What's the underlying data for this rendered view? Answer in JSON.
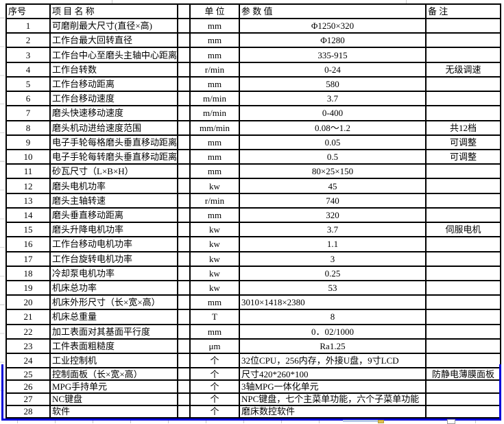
{
  "colors": {
    "table_border": "#000000",
    "selection_border_blue": "#0101d8",
    "margin_grid_gray": "#d6d6d6"
  },
  "table": {
    "headers": {
      "no": "序号",
      "name": "项 目 名 称",
      "unit": "单 位",
      "value": "参 数 值",
      "note": "备 注"
    },
    "rows": [
      {
        "no": "1",
        "name": "可磨削最大尺寸(直径×高)",
        "unit": "mm",
        "value": "Φ1250×320",
        "value_align": "center",
        "note": "",
        "in_selection": false
      },
      {
        "no": "2",
        "name": "工作台最大回转直径",
        "unit": "mm",
        "value": "Φ1280",
        "value_align": "center",
        "note": "",
        "in_selection": false
      },
      {
        "no": "3",
        "name": "工作台中心至磨头主轴中心距离",
        "unit": "mm",
        "value": "335-915",
        "value_align": "center",
        "note": "",
        "in_selection": false
      },
      {
        "no": "4",
        "name": "工作台转数",
        "unit": "r/min",
        "value": "0-24",
        "value_align": "center",
        "note": "无级调速",
        "in_selection": false
      },
      {
        "no": "5",
        "name": "工作台移动距离",
        "unit": "mm",
        "value": "580",
        "value_align": "center",
        "note": "",
        "in_selection": false
      },
      {
        "no": "6",
        "name": "工作台移动速度",
        "unit": "m/min",
        "value": "3.7",
        "value_align": "center",
        "note": "",
        "in_selection": false
      },
      {
        "no": "7",
        "name": "磨头快速移动速度",
        "unit": "m/min",
        "value": "0-400",
        "value_align": "center",
        "note": "",
        "in_selection": false
      },
      {
        "no": "8",
        "name": "磨头机动进给速度范围",
        "unit": "mm/min",
        "value": "0.08～1.2",
        "value_align": "center",
        "note": "共12档",
        "in_selection": false
      },
      {
        "no": "9",
        "name": "电子手轮每格磨头垂直移动距离",
        "unit": "mm",
        "value": "0.05",
        "value_align": "center",
        "note": "可调整",
        "in_selection": false
      },
      {
        "no": "10",
        "name": "电子手轮每转磨头垂直移动距离",
        "unit": "mm",
        "value": "0.5",
        "value_align": "center",
        "note": "可调整",
        "in_selection": false
      },
      {
        "no": "11",
        "name": "砂瓦尺寸（L×B×H）",
        "unit": "mm",
        "value": "80×25×150",
        "value_align": "center",
        "note": "",
        "in_selection": false
      },
      {
        "no": "12",
        "name": "磨头电机功率",
        "unit": "kw",
        "value": "45",
        "value_align": "center",
        "note": "",
        "in_selection": false
      },
      {
        "no": "13",
        "name": "磨头主轴转速",
        "unit": "r/min",
        "value": "740",
        "value_align": "center",
        "note": "",
        "in_selection": false
      },
      {
        "no": "14",
        "name": "磨头垂直移动距离",
        "unit": "mm",
        "value": "320",
        "value_align": "center",
        "note": "",
        "in_selection": false
      },
      {
        "no": "15",
        "name": "磨头升降电机功率",
        "unit": "kw",
        "value": "3.7",
        "value_align": "center",
        "note": "伺服电机",
        "in_selection": false
      },
      {
        "no": "16",
        "name": "工作台移动电机功率",
        "unit": "kw",
        "value": "1.1",
        "value_align": "center",
        "note": "",
        "in_selection": false
      },
      {
        "no": "17",
        "name": "工作台旋转电机功率",
        "unit": "kw",
        "value": "3",
        "value_align": "center",
        "note": "",
        "in_selection": false
      },
      {
        "no": "18",
        "name": "冷却泵电机功率",
        "unit": "kw",
        "value": "0.25",
        "value_align": "center",
        "note": "",
        "in_selection": false
      },
      {
        "no": "19",
        "name": "机床总功率",
        "unit": "kw",
        "value": "53",
        "value_align": "center",
        "note": "",
        "in_selection": false
      },
      {
        "no": "20",
        "name": "机床外形尺寸（长×宽×高）",
        "unit": "mm",
        "value": "3010×1418×2380",
        "value_align": "left",
        "note": "",
        "in_selection": false
      },
      {
        "no": "21",
        "name": "机床总重量",
        "unit": "T",
        "value": "8",
        "value_align": "center",
        "note": "",
        "in_selection": false
      },
      {
        "no": "22",
        "name": "加工表面对其基面平行度",
        "unit": "mm",
        "value": "0．02/1000",
        "value_align": "center",
        "note": "",
        "in_selection": false
      },
      {
        "no": "23",
        "name": "工件表面粗糙度",
        "unit": "μm",
        "value": "Ra1.25",
        "value_align": "center",
        "note": "",
        "in_selection": false
      },
      {
        "no": "24",
        "name": "工业控制机",
        "unit": "个",
        "value": "32位CPU，256内存，外接U盘，9寸LCD",
        "value_align": "left",
        "note": "",
        "in_selection": false
      },
      {
        "no": "25",
        "name": "控制面板（长×宽×高）",
        "unit": "个",
        "value": "尺寸420*260*100",
        "value_align": "left",
        "note": "防静电薄膜面板",
        "in_selection": true
      },
      {
        "no": "26",
        "name": "MPG手持单元",
        "unit": "个",
        "value": "3轴MPG一体化单元",
        "value_align": "left",
        "note": "",
        "in_selection": true
      },
      {
        "no": "27",
        "name": "NC键盘",
        "unit": "个",
        "value": "NPC键盘，七个主菜单功能，六个子菜单功能",
        "value_align": "left",
        "note": "",
        "in_selection": true
      },
      {
        "no": "28",
        "name": "软件",
        "unit": "个",
        "value": "磨床数控软件",
        "value_align": "left",
        "note": "",
        "in_selection": true
      }
    ]
  }
}
